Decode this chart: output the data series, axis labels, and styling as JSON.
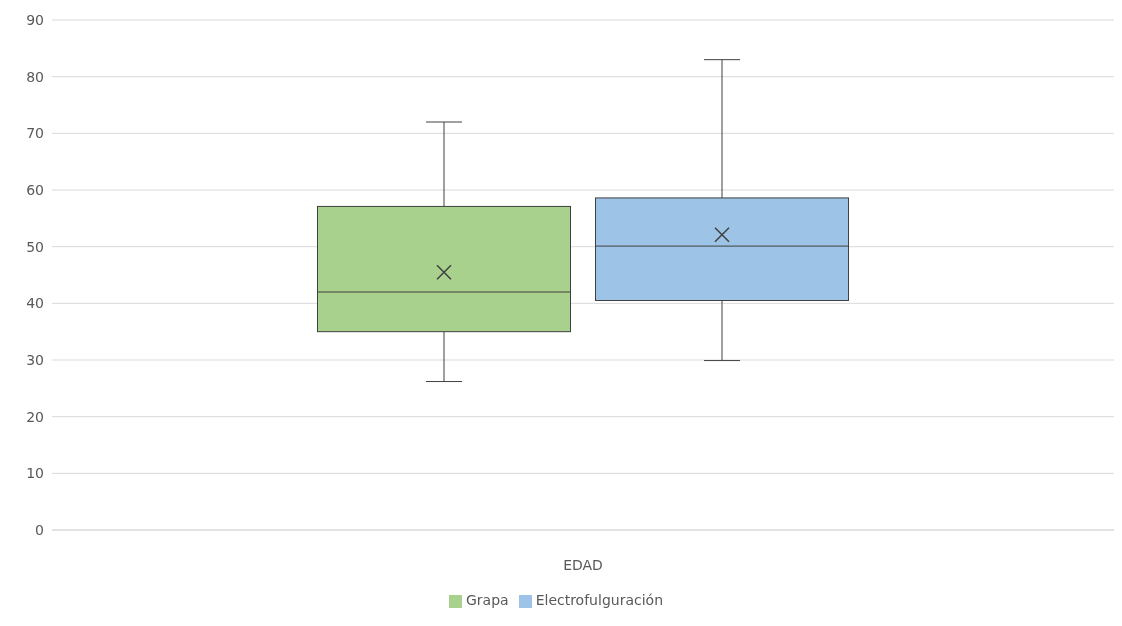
{
  "chart_data": {
    "type": "box",
    "categories": [
      "EDAD"
    ],
    "series": [
      {
        "name": "Grapa",
        "color": "#a9d18e",
        "boxes": [
          {
            "low": 26.2,
            "q1": 35,
            "median": 42,
            "q3": 57.1,
            "high": 72,
            "mean": 45.5
          }
        ]
      },
      {
        "name": "Electrofulguración",
        "color": "#9dc3e6",
        "boxes": [
          {
            "low": 29.9,
            "q1": 40.5,
            "median": 50.1,
            "q3": 58.6,
            "high": 83,
            "mean": 52.1
          }
        ]
      }
    ],
    "ylim": [
      0,
      90
    ],
    "yticks": [
      0,
      10,
      20,
      30,
      40,
      50,
      60,
      70,
      80,
      90
    ],
    "grid": "y",
    "legend": "bottom",
    "marker": "cross"
  }
}
